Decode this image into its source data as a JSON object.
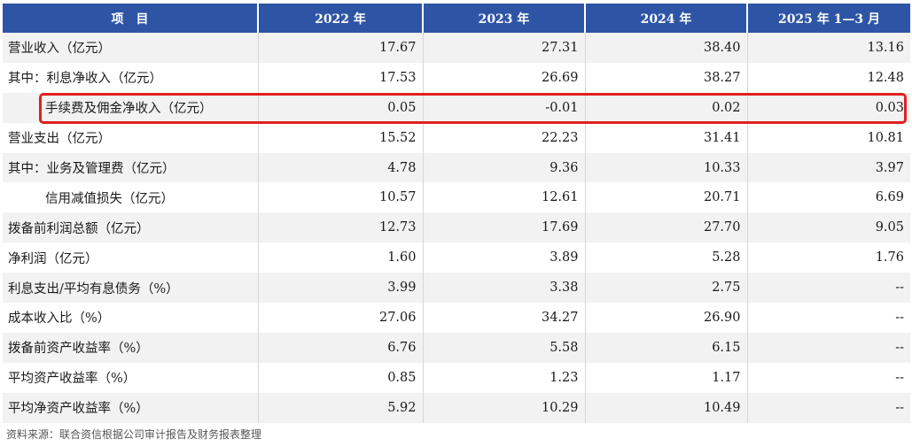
{
  "table": {
    "headers": [
      "项　目",
      "2022 年",
      "2023 年",
      "2024 年",
      "2025 年 1—3 月"
    ],
    "rows": [
      {
        "label": "营业收入（亿元）",
        "indent": false,
        "values": [
          "17.67",
          "27.31",
          "38.40",
          "13.16"
        ]
      },
      {
        "label": "其中：利息净收入（亿元）",
        "indent": false,
        "values": [
          "17.53",
          "26.69",
          "38.27",
          "12.48"
        ]
      },
      {
        "label": "手续费及佣金净收入（亿元）",
        "indent": true,
        "highlighted": true,
        "values": [
          "0.05",
          "-0.01",
          "0.02",
          "0.03"
        ]
      },
      {
        "label": "营业支出（亿元）",
        "indent": false,
        "values": [
          "15.52",
          "22.23",
          "31.41",
          "10.81"
        ]
      },
      {
        "label": "其中：业务及管理费（亿元）",
        "indent": false,
        "values": [
          "4.78",
          "9.36",
          "10.33",
          "3.97"
        ]
      },
      {
        "label": "信用减值损失（亿元）",
        "indent": true,
        "values": [
          "10.57",
          "12.61",
          "20.71",
          "6.69"
        ]
      },
      {
        "label": "拨备前利润总额（亿元）",
        "indent": false,
        "values": [
          "12.73",
          "17.69",
          "27.70",
          "9.05"
        ]
      },
      {
        "label": "净利润（亿元）",
        "indent": false,
        "values": [
          "1.60",
          "3.89",
          "5.28",
          "1.76"
        ]
      },
      {
        "label": "利息支出/平均有息债务（%）",
        "indent": false,
        "values": [
          "3.99",
          "3.38",
          "2.75",
          "--"
        ]
      },
      {
        "label": "成本收入比（%）",
        "indent": false,
        "values": [
          "27.06",
          "34.27",
          "26.90",
          "--"
        ]
      },
      {
        "label": "拨备前资产收益率（%）",
        "indent": false,
        "values": [
          "6.76",
          "5.58",
          "6.15",
          "--"
        ]
      },
      {
        "label": "平均资产收益率（%）",
        "indent": false,
        "values": [
          "0.85",
          "1.23",
          "1.17",
          "--"
        ]
      },
      {
        "label": "平均净资产收益率（%）",
        "indent": false,
        "values": [
          "5.92",
          "10.29",
          "10.49",
          "--"
        ]
      }
    ]
  },
  "source": "资料来源：联合资信根据公司审计报告及财务报表整理",
  "colors": {
    "header_bg": "#2e55a5",
    "highlight_border": "#e02020"
  }
}
